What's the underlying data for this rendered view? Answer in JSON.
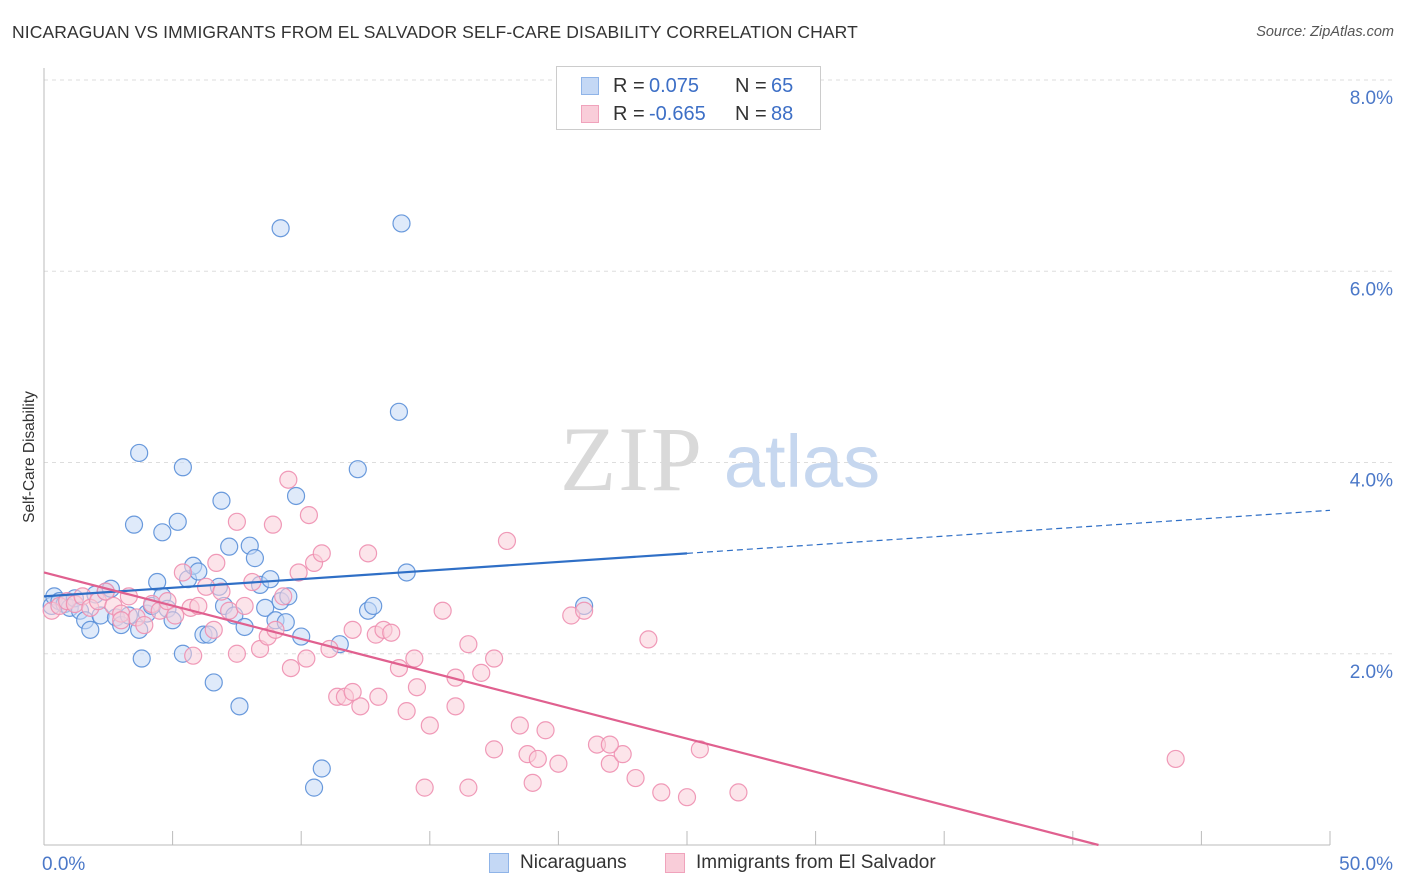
{
  "title": "NICARAGUAN VS IMMIGRANTS FROM EL SALVADOR SELF-CARE DISABILITY CORRELATION CHART",
  "source": "Source: ZipAtlas.com",
  "watermark": {
    "zip": "ZIP",
    "atlas": "atlas"
  },
  "legend": {
    "r_label": "R =",
    "n_label": "N =",
    "rows": [
      {
        "r": "0.075",
        "n": "65",
        "color": "#8fb4e8",
        "fill": "#c4d8f5"
      },
      {
        "r": "-0.665",
        "n": "88",
        "color": "#f0a3bc",
        "fill": "#f9cdd9"
      }
    ]
  },
  "bottom_legend": [
    "Nicaraguans",
    "Immigrants from El Salvador"
  ],
  "chart_data": {
    "type": "scatter",
    "title": "NICARAGUAN VS IMMIGRANTS FROM EL SALVADOR SELF-CARE DISABILITY CORRELATION CHART",
    "xlabel": "",
    "ylabel": "Self-Care Disability",
    "xlim": [
      0,
      50
    ],
    "ylim": [
      0,
      8.0
    ],
    "x_tick_labels": [
      "0.0%",
      "50.0%"
    ],
    "y_ticks": [
      2.0,
      4.0,
      6.0,
      8.0
    ],
    "y_tick_labels": [
      "2.0%",
      "4.0%",
      "6.0%",
      "8.0%"
    ],
    "grid": "horizontal dashed",
    "legend_position": "top-center",
    "series": [
      {
        "name": "Nicaraguans",
        "color": "#5a8fd8",
        "fill": "#c4d8f5",
        "line_color": "#2f6fc6",
        "trend": {
          "x0": 0,
          "y0": 2.6,
          "x1": 25,
          "y1": 3.05,
          "dashed_to_x": 50,
          "dashed_to_y": 3.5
        },
        "points": [
          [
            0.3,
            2.5
          ],
          [
            0.4,
            2.6
          ],
          [
            0.6,
            2.55
          ],
          [
            0.8,
            2.52
          ],
          [
            1.0,
            2.48
          ],
          [
            1.2,
            2.58
          ],
          [
            1.4,
            2.45
          ],
          [
            1.6,
            2.35
          ],
          [
            1.8,
            2.25
          ],
          [
            2.0,
            2.62
          ],
          [
            2.2,
            2.4
          ],
          [
            2.4,
            2.65
          ],
          [
            2.6,
            2.68
          ],
          [
            2.8,
            2.38
          ],
          [
            3.0,
            2.3
          ],
          [
            3.3,
            2.4
          ],
          [
            3.5,
            3.35
          ],
          [
            3.7,
            2.25
          ],
          [
            3.8,
            1.95
          ],
          [
            4.0,
            2.42
          ],
          [
            4.2,
            2.5
          ],
          [
            4.4,
            2.75
          ],
          [
            4.6,
            2.6
          ],
          [
            4.8,
            2.47
          ],
          [
            5.0,
            2.35
          ],
          [
            5.2,
            3.38
          ],
          [
            5.4,
            2.0
          ],
          [
            5.6,
            2.78
          ],
          [
            5.8,
            2.92
          ],
          [
            6.0,
            2.86
          ],
          [
            6.2,
            2.2
          ],
          [
            6.4,
            2.2
          ],
          [
            6.6,
            1.7
          ],
          [
            6.8,
            2.7
          ],
          [
            7.0,
            2.5
          ],
          [
            7.2,
            3.12
          ],
          [
            7.4,
            2.4
          ],
          [
            7.6,
            1.45
          ],
          [
            7.8,
            2.28
          ],
          [
            8.0,
            3.13
          ],
          [
            8.2,
            3.0
          ],
          [
            8.4,
            2.72
          ],
          [
            8.6,
            2.48
          ],
          [
            8.8,
            2.78
          ],
          [
            9.0,
            2.35
          ],
          [
            9.2,
            2.55
          ],
          [
            9.4,
            2.33
          ],
          [
            9.5,
            2.6
          ],
          [
            9.8,
            3.65
          ],
          [
            10.0,
            2.18
          ],
          [
            10.5,
            0.6
          ],
          [
            10.8,
            0.8
          ],
          [
            11.5,
            2.1
          ],
          [
            12.2,
            3.93
          ],
          [
            12.6,
            2.45
          ],
          [
            12.8,
            2.5
          ],
          [
            13.8,
            4.53
          ],
          [
            14.1,
            2.85
          ],
          [
            13.9,
            6.5
          ],
          [
            9.2,
            6.45
          ],
          [
            3.7,
            4.1
          ],
          [
            4.6,
            3.27
          ],
          [
            5.4,
            3.95
          ],
          [
            6.9,
            3.6
          ],
          [
            21.0,
            2.5
          ]
        ]
      },
      {
        "name": "Immigrants from El Salvador",
        "color": "#ee8fb0",
        "fill": "#f9cdd9",
        "line_color": "#e0608f",
        "trend": {
          "x0": 0,
          "y0": 2.85,
          "x1": 41,
          "y1": 0.0
        },
        "points": [
          [
            0.3,
            2.45
          ],
          [
            0.6,
            2.5
          ],
          [
            0.9,
            2.55
          ],
          [
            1.2,
            2.52
          ],
          [
            1.5,
            2.6
          ],
          [
            1.8,
            2.48
          ],
          [
            2.1,
            2.55
          ],
          [
            2.4,
            2.65
          ],
          [
            2.7,
            2.5
          ],
          [
            3.0,
            2.42
          ],
          [
            3.3,
            2.6
          ],
          [
            3.6,
            2.38
          ],
          [
            3.9,
            2.3
          ],
          [
            4.2,
            2.52
          ],
          [
            4.5,
            2.45
          ],
          [
            4.8,
            2.55
          ],
          [
            5.1,
            2.4
          ],
          [
            5.4,
            2.85
          ],
          [
            5.7,
            2.48
          ],
          [
            6.0,
            2.5
          ],
          [
            6.3,
            2.7
          ],
          [
            6.6,
            2.25
          ],
          [
            6.9,
            2.65
          ],
          [
            7.2,
            2.45
          ],
          [
            7.5,
            2.0
          ],
          [
            7.8,
            2.5
          ],
          [
            8.1,
            2.75
          ],
          [
            8.4,
            2.05
          ],
          [
            8.7,
            2.18
          ],
          [
            9.0,
            2.25
          ],
          [
            9.3,
            2.6
          ],
          [
            9.6,
            1.85
          ],
          [
            9.9,
            2.85
          ],
          [
            10.2,
            1.95
          ],
          [
            10.5,
            2.95
          ],
          [
            10.8,
            3.05
          ],
          [
            11.1,
            2.05
          ],
          [
            11.4,
            1.55
          ],
          [
            11.7,
            1.55
          ],
          [
            12.0,
            2.25
          ],
          [
            12.3,
            1.45
          ],
          [
            12.6,
            3.05
          ],
          [
            12.9,
            2.2
          ],
          [
            13.2,
            2.25
          ],
          [
            13.5,
            2.22
          ],
          [
            13.8,
            1.85
          ],
          [
            14.1,
            1.4
          ],
          [
            14.4,
            1.95
          ],
          [
            14.8,
            0.6
          ],
          [
            15.0,
            1.25
          ],
          [
            15.5,
            2.45
          ],
          [
            16.0,
            1.75
          ],
          [
            16.5,
            2.1
          ],
          [
            17.0,
            1.8
          ],
          [
            17.5,
            1.0
          ],
          [
            18.0,
            3.18
          ],
          [
            18.5,
            1.25
          ],
          [
            18.8,
            0.95
          ],
          [
            19.2,
            0.9
          ],
          [
            19.5,
            1.2
          ],
          [
            20.0,
            0.85
          ],
          [
            20.5,
            2.4
          ],
          [
            21.0,
            2.45
          ],
          [
            21.5,
            1.05
          ],
          [
            22.0,
            0.85
          ],
          [
            22.5,
            0.95
          ],
          [
            23.0,
            0.7
          ],
          [
            23.5,
            2.15
          ],
          [
            24.0,
            0.55
          ],
          [
            25.0,
            0.5
          ],
          [
            25.5,
            1.0
          ],
          [
            27.0,
            0.55
          ],
          [
            44.0,
            0.9
          ],
          [
            5.8,
            1.98
          ],
          [
            6.7,
            2.95
          ],
          [
            8.9,
            3.35
          ],
          [
            9.5,
            3.82
          ],
          [
            10.3,
            3.45
          ],
          [
            7.5,
            3.38
          ],
          [
            12.0,
            1.6
          ],
          [
            13.0,
            1.55
          ],
          [
            14.5,
            1.65
          ],
          [
            16.0,
            1.45
          ],
          [
            17.5,
            1.95
          ],
          [
            19.0,
            0.65
          ],
          [
            16.5,
            0.6
          ],
          [
            22.0,
            1.05
          ],
          [
            3.0,
            2.35
          ]
        ]
      }
    ]
  }
}
